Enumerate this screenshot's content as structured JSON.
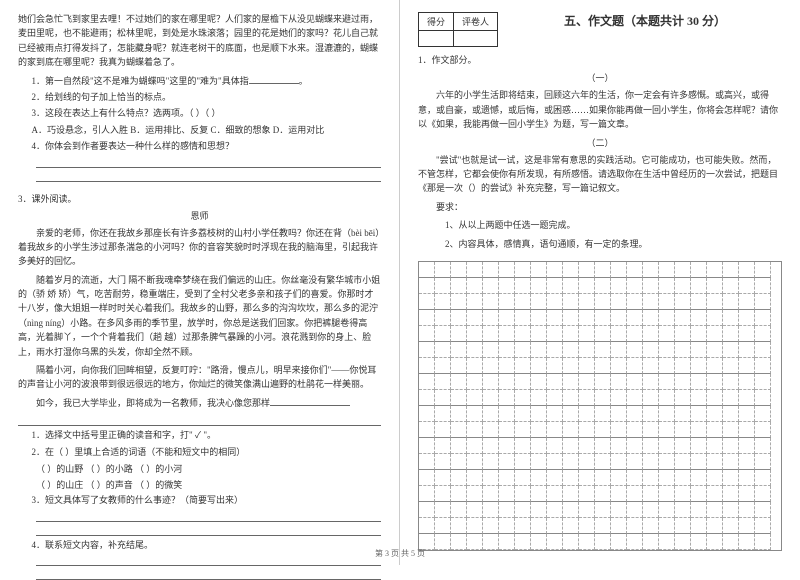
{
  "left": {
    "p1": "她们会急忙飞到家里去哩！不过她们的家在哪里呢？人们家的屋檐下从没见蝴蝶来避过雨，麦田里呢，也不能避雨；松林里呢，到处是水珠滚落；园里的花是她们的家吗？花儿自己就已经被雨点打得发抖了，怎能藏身呢？就连老树干的底面，也是顺下水来。湿漉漉的，蝴蝶的家到底在哪里呢？我真为蝴蝶着急了。",
    "q1": "1．第一自然段\"这不是难为蝴蝶吗\"这里的\"难为\"具体指",
    "q2": "2．给划线的句子加上恰当的标点。",
    "q3": "3．这段在表达上有什么特点？选两项。（        ）（        ）",
    "q3a": "A．巧设悬念，引人入胜    B．运用排比、反复    C．细致的想象    D．运用对比",
    "q4": "4．你体会到作者要表达一种什么样的感情和思想？",
    "reading_num": "3．课外阅读。",
    "reading_title": "恩师",
    "r1": "亲爱的老师，你还在我故乡那座长有许多荔枝树的山村小学任教吗？你还在背（bèi  bēi）着我故乡的小学生涉过那条湍急的小河吗？你的音容笑貌时时浮现在我的脑海里，引起我许多美好的回忆。",
    "r2": "记得你教我的时候，是在我故乡的小山村小学里。你出身在",
    "r3": "随着岁月的流逝，大门  隔不断我魂牵梦绕在我们偏远的山庄。你丝毫没有繁华城市小姐的（骄  娇  矫）气，吃苦耐劳，稳重端庄，受到了全村父老多亲和孩子们的喜爱。你那时才十八岁，像大姐姐一样时时关心着我们。我故乡的山野，那么多的沟沟坎坎，那么多的泥泞（nìng  níng）小路。在多风多雨的季节里，放学时，你总是送我们回家。你把裤腿卷得高高，光着脚丫，一个个背着我们（趟  越）过那条脾气暴躁的小河。浪花溅到你的身上、脸上，雨水打湿你乌黑的头发，你却全然不顾。",
    "r4": "隔着小河，向你我们回眸相望，反复叮咛：\"路滑，慢点儿，明早来接你们\"——你悦耳的声音让小河的波浪带到很远很远的地方，你灿烂的微笑像满山遍野的杜鹃花一样美丽。",
    "r5": "如今，我已大学毕业，即将成为一名教师，我决心像您那样",
    "sq1": "1．选择文中括号里正确的读音和字，打\" ✓ \"。",
    "sq2": "2．在（      ）里填上合适的词语（不能和短文中的相同）",
    "sq2a": "（          ）的山野      （          ）的小路      （          ）的小河",
    "sq2b": "（          ）的山庄      （          ）的声音      （          ）的微笑",
    "sq3": "3．短文具体写了女教师的什么事迹？（简要写出来）",
    "sq4": "4．联系短文内容，补充结尾。"
  },
  "right": {
    "score_label1": "得分",
    "score_label2": "评卷人",
    "heading": "五、作文题（本题共计 30 分）",
    "essay_num": "1．作文部分。",
    "sub1": "（一）",
    "e1": "六年的小学生活即将结束，回顾这六年的生活，你一定会有许多感慨。或高兴，或得意，或自豪，或遗憾，或后悔，或困惑……如果你能再做一回小学生，你将会怎样呢？请你以《如果，我能再做一回小学生》为题，写一篇文章。",
    "sub2": "（二）",
    "e2": "\"尝试\"也就是试一试，这是非常有意思的实践活动。它可能成功，也可能失败。然而，不管怎样，它都会使你有所发现，有所感悟。请选取你在生活中曾经历的一次尝试，把题目《那是一次（）的尝试》补充完整，写一篇记叙文。",
    "req_label": "要求：",
    "req1": "1、从以上两题中任选一题完成。",
    "req2": "2、内容具体，感情真，语句通顺，有一定的条理。"
  },
  "footer": "第 3 页 共 5 页",
  "style": {
    "grid_rows": 18,
    "grid_cols": 22
  }
}
